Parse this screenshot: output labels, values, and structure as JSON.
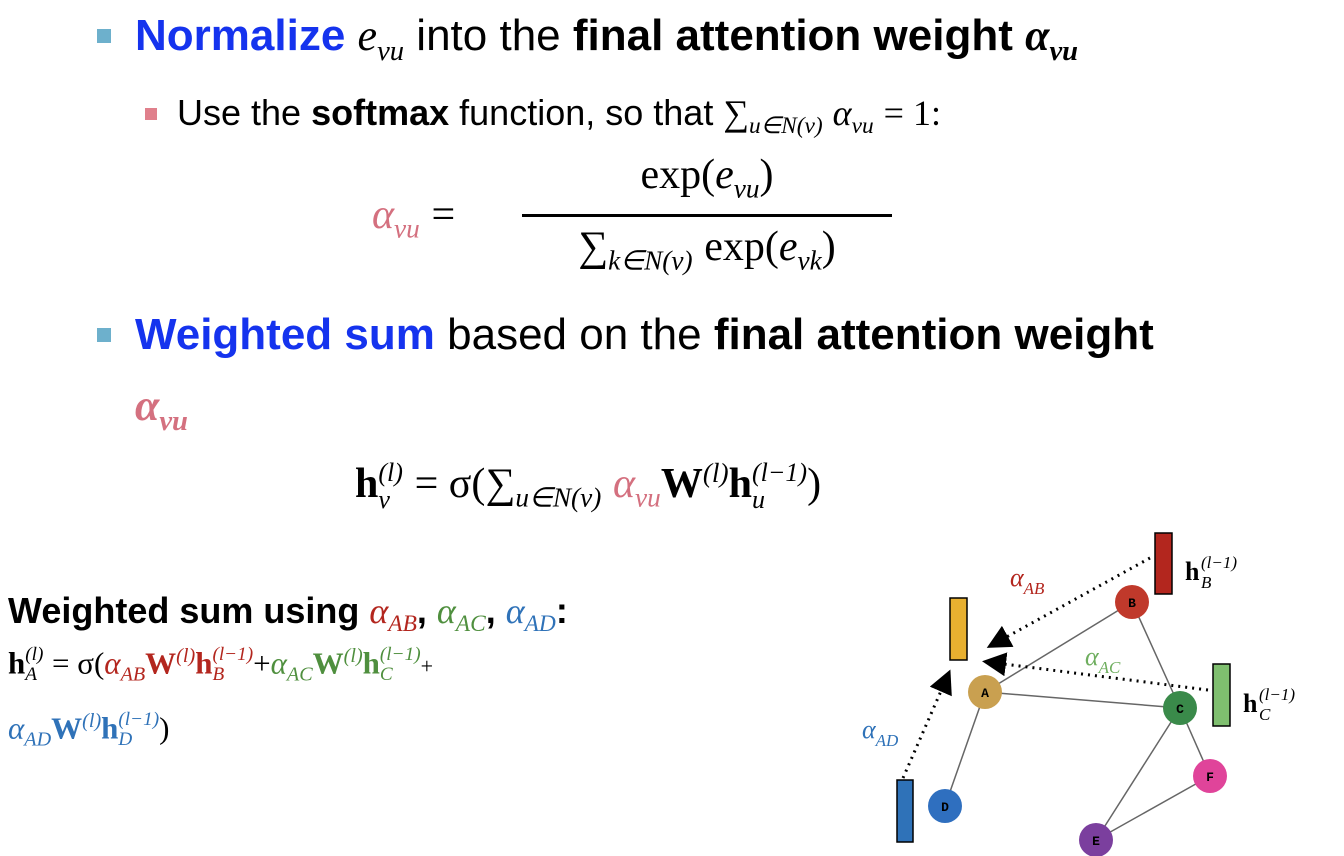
{
  "bullet1": [
    "Normalize",
    "e",
    "vu",
    "into the",
    "final attention weight",
    "α",
    "vu"
  ],
  "bullet1_sub": [
    "Use the",
    "softmax",
    "function, so that",
    "∑",
    "u∈N(v)",
    "α",
    "vu",
    "= 1:"
  ],
  "eq1": [
    "α",
    "vu",
    "=",
    "exp(",
    "e",
    "vu",
    ")",
    "∑",
    "k∈N(v)",
    "exp(",
    "e",
    "vk",
    ")"
  ],
  "bullet2": [
    "Weighted sum",
    "based on the",
    "final attention weight",
    "α",
    "vu"
  ],
  "eq2": [
    "h",
    "(l)",
    "v",
    "= σ(",
    "∑",
    "u∈N(v)",
    "α",
    "vu",
    "W",
    "(l)",
    "h",
    "(l−1)",
    "u",
    ")"
  ],
  "box_title": [
    "Weighted sum using",
    "α",
    "AB",
    ",",
    "α",
    "AC",
    ",",
    "α",
    "AD",
    ":"
  ],
  "box_eq": [
    "h",
    "(l)",
    "A",
    "= σ(",
    "α",
    "AB",
    "W",
    "(l)",
    "h",
    "(l−1)",
    "B",
    "+",
    "α",
    "AC",
    "W",
    "(l)",
    "h",
    "(l−1)",
    "C",
    "+",
    "α",
    "AD",
    "W",
    "(l)",
    "h",
    "(l−1)",
    "D",
    ")"
  ],
  "graph": {
    "nodes": [
      "A",
      "B",
      "C",
      "D",
      "E",
      "F"
    ],
    "edge_labels": [
      [
        "α",
        "AB"
      ],
      [
        "α",
        "AC"
      ],
      [
        "α",
        "AD"
      ]
    ],
    "embeddings": [
      [
        "h",
        "(l−1)",
        "B"
      ],
      [
        "h",
        "(l−1)",
        "C"
      ]
    ]
  }
}
